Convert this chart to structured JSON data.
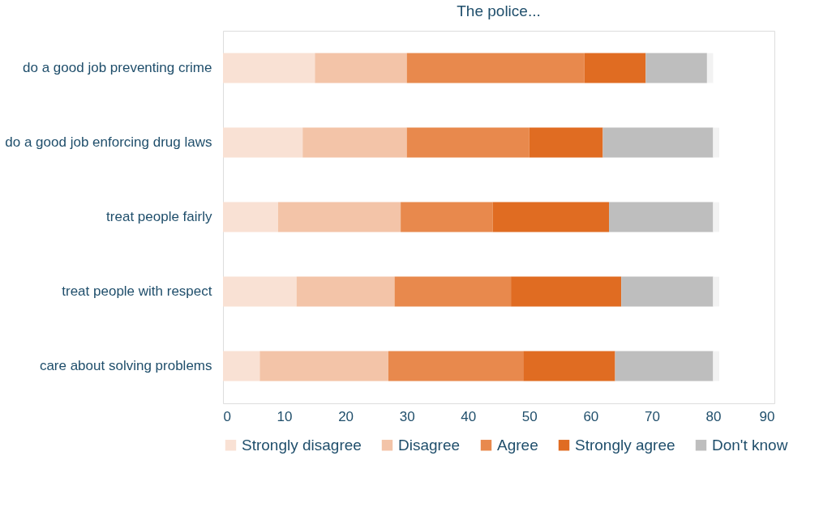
{
  "chart_data": {
    "type": "bar",
    "orientation": "horizontal",
    "stacked": true,
    "title": "The police...",
    "categories": [
      "do a good job preventing crime",
      "do a good job enforcing drug laws",
      "treat people fairly",
      "treat people with respect",
      "care about solving problems"
    ],
    "series": [
      {
        "name": "Strongly disagree",
        "color": "#f9e1d4",
        "values": [
          15,
          13,
          9,
          12,
          6
        ]
      },
      {
        "name": "Disagree",
        "color": "#f3c4a8",
        "values": [
          15,
          17,
          20,
          16,
          21
        ]
      },
      {
        "name": "Agree",
        "color": "#e8894d",
        "values": [
          29,
          20,
          15,
          19,
          22
        ]
      },
      {
        "name": "Strongly agree",
        "color": "#e06c22",
        "values": [
          10,
          12,
          19,
          18,
          15
        ]
      },
      {
        "name": "Don't know",
        "color": "#bebebe",
        "values": [
          10,
          18,
          17,
          15,
          16
        ]
      },
      {
        "color": "#f2f2f2",
        "values": [
          1,
          1,
          1,
          1,
          1
        ]
      }
    ],
    "xlim": [
      0,
      90
    ],
    "xticks": [
      0,
      10,
      20,
      30,
      40,
      50,
      60,
      70,
      80,
      90
    ],
    "grid": false,
    "legend": "bottom"
  }
}
